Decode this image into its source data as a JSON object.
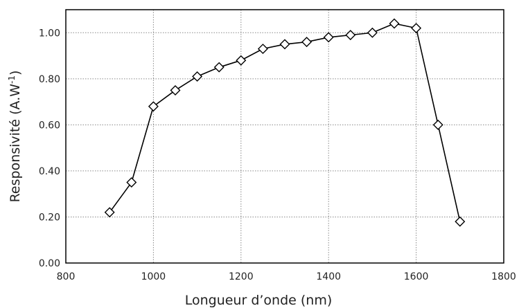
{
  "chart_data": {
    "type": "line",
    "xlabel": "Longueur d’onde (nm)",
    "ylabel": [
      "Responsivité (A.W",
      "-1",
      ")"
    ],
    "x": [
      900,
      950,
      1000,
      1050,
      1100,
      1150,
      1200,
      1250,
      1300,
      1350,
      1400,
      1450,
      1500,
      1550,
      1600,
      1650,
      1700
    ],
    "series": [
      {
        "color": "#000000",
        "values": [
          0.22,
          0.35,
          0.68,
          0.75,
          0.81,
          0.85,
          0.88,
          0.93,
          0.95,
          0.96,
          0.98,
          0.99,
          1.0,
          1.04,
          1.02,
          0.6,
          0.18
        ]
      }
    ],
    "xlim": [
      800,
      1800
    ],
    "xticks": [
      800,
      1000,
      1200,
      1400,
      1600,
      1800
    ],
    "ylim": [
      0,
      1.1
    ],
    "yticks": [
      {
        "value": 0,
        "label": "0.00"
      },
      {
        "value": 0.2,
        "label": "0.20"
      },
      {
        "value": 0.4,
        "label": "0.40"
      },
      {
        "value": 0.6,
        "label": "0.60"
      },
      {
        "value": 0.8,
        "label": "0.80"
      },
      {
        "value": 1.0,
        "label": "1.00"
      }
    ],
    "grid": true
  }
}
